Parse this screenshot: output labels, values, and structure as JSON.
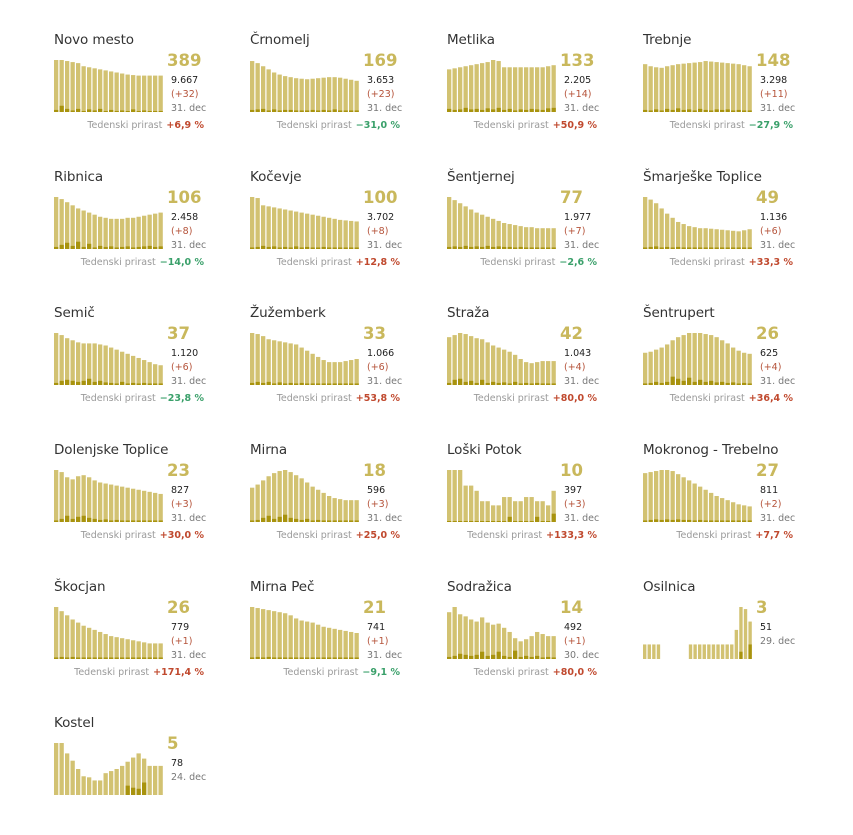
{
  "colors": {
    "bar_total": "#d2c272",
    "bar_new": "#a8930e",
    "accent_number": "#c9b85c",
    "increase": "#c0492e",
    "decrease": "#3aa06a"
  },
  "chart_data": [
    {
      "type": "bar",
      "title": "Novo mesto",
      "value": "389",
      "total": "9.667",
      "delta": "(+32)",
      "date": "31. dec",
      "weekly_label": "Tedenski prirast",
      "weekly_value": "+6,9 %",
      "trend": "up",
      "values": [
        100,
        100,
        98,
        96,
        94,
        88,
        86,
        84,
        82,
        80,
        78,
        76,
        74,
        72,
        71,
        70,
        70,
        70,
        70,
        70
      ],
      "new": [
        4,
        12,
        6,
        3,
        6,
        2,
        5,
        3,
        6,
        2,
        4,
        2,
        3,
        2,
        5,
        2,
        3,
        2,
        2,
        2
      ]
    },
    {
      "type": "bar",
      "title": "Črnomelj",
      "value": "169",
      "total": "3.653",
      "delta": "(+23)",
      "date": "31. dec",
      "weekly_label": "Tedenski prirast",
      "weekly_value": "−31,0 %",
      "trend": "down",
      "values": [
        98,
        94,
        88,
        82,
        76,
        72,
        69,
        67,
        65,
        64,
        63,
        64,
        65,
        66,
        67,
        67,
        66,
        64,
        62,
        60
      ],
      "new": [
        4,
        5,
        6,
        3,
        5,
        3,
        4,
        4,
        3,
        3,
        3,
        4,
        3,
        4,
        3,
        5,
        3,
        3,
        3,
        3
      ]
    },
    {
      "type": "bar",
      "title": "Metlika",
      "value": "133",
      "total": "2.205",
      "delta": "(+14)",
      "date": "31. dec",
      "weekly_label": "Tedenski prirast",
      "weekly_value": "+50,9 %",
      "trend": "up",
      "values": [
        82,
        84,
        86,
        88,
        90,
        92,
        94,
        96,
        100,
        98,
        86,
        86,
        86,
        86,
        86,
        86,
        86,
        86,
        88,
        90
      ],
      "new": [
        6,
        4,
        5,
        8,
        5,
        6,
        4,
        7,
        5,
        8,
        4,
        6,
        3,
        5,
        4,
        6,
        5,
        4,
        7,
        8
      ]
    },
    {
      "type": "bar",
      "title": "Trebnje",
      "value": "148",
      "total": "3.298",
      "delta": "(+11)",
      "date": "31. dec",
      "weekly_label": "Tedenski prirast",
      "weekly_value": "−27,9 %",
      "trend": "down",
      "values": [
        92,
        88,
        86,
        85,
        88,
        90,
        92,
        93,
        94,
        95,
        96,
        98,
        97,
        96,
        95,
        94,
        93,
        92,
        90,
        88
      ],
      "new": [
        4,
        3,
        5,
        3,
        6,
        4,
        7,
        4,
        5,
        3,
        6,
        4,
        3,
        5,
        4,
        5,
        3,
        4,
        3,
        3
      ]
    },
    {
      "type": "bar",
      "title": "Ribnica",
      "value": "106",
      "total": "2.458",
      "delta": "(+8)",
      "date": "31. dec",
      "weekly_label": "Tedenski prirast",
      "weekly_value": "−14,0 %",
      "trend": "down",
      "values": [
        100,
        96,
        90,
        84,
        78,
        74,
        70,
        66,
        62,
        60,
        58,
        58,
        58,
        60,
        60,
        62,
        64,
        66,
        68,
        70
      ],
      "new": [
        4,
        8,
        12,
        6,
        14,
        4,
        10,
        3,
        6,
        4,
        5,
        3,
        4,
        5,
        3,
        4,
        5,
        6,
        4,
        5
      ]
    },
    {
      "type": "bar",
      "title": "Kočevje",
      "value": "100",
      "total": "3.702",
      "delta": "(+8)",
      "date": "31. dec",
      "weekly_label": "Tedenski prirast",
      "weekly_value": "+12,8 %",
      "trend": "up",
      "values": [
        100,
        98,
        84,
        82,
        80,
        78,
        76,
        74,
        72,
        70,
        68,
        66,
        64,
        62,
        60,
        58,
        56,
        55,
        54,
        53
      ],
      "new": [
        3,
        4,
        6,
        4,
        5,
        3,
        4,
        3,
        5,
        3,
        4,
        3,
        3,
        4,
        3,
        3,
        3,
        3,
        3,
        3
      ]
    },
    {
      "type": "bar",
      "title": "Šentjernej",
      "value": "77",
      "total": "1.977",
      "delta": "(+7)",
      "date": "31. dec",
      "weekly_label": "Tedenski prirast",
      "weekly_value": "−2,6 %",
      "trend": "down",
      "values": [
        100,
        94,
        88,
        82,
        76,
        70,
        66,
        62,
        58,
        54,
        50,
        48,
        46,
        44,
        42,
        42,
        40,
        40,
        40,
        40
      ],
      "new": [
        4,
        5,
        4,
        6,
        4,
        5,
        4,
        6,
        4,
        5,
        4,
        4,
        3,
        4,
        3,
        3,
        3,
        3,
        3,
        3
      ]
    },
    {
      "type": "bar",
      "title": "Šmarješke Toplice",
      "value": "49",
      "total": "1.136",
      "delta": "(+6)",
      "date": "31. dec",
      "weekly_label": "Tedenski prirast",
      "weekly_value": "+33,3 %",
      "trend": "up",
      "values": [
        100,
        95,
        88,
        78,
        68,
        60,
        52,
        48,
        44,
        42,
        40,
        40,
        39,
        38,
        37,
        36,
        35,
        34,
        36,
        38
      ],
      "new": [
        3,
        4,
        5,
        3,
        4,
        3,
        4,
        3,
        3,
        3,
        3,
        3,
        3,
        3,
        3,
        3,
        3,
        3,
        3,
        3
      ]
    },
    {
      "type": "bar",
      "title": "Semič",
      "value": "37",
      "total": "1.120",
      "delta": "(+6)",
      "date": "31. dec",
      "weekly_label": "Tedenski prirast",
      "weekly_value": "−23,8 %",
      "trend": "down",
      "values": [
        100,
        96,
        90,
        86,
        82,
        80,
        80,
        80,
        78,
        76,
        72,
        68,
        64,
        60,
        56,
        52,
        48,
        44,
        40,
        38
      ],
      "new": [
        4,
        8,
        10,
        8,
        6,
        8,
        12,
        6,
        8,
        5,
        4,
        3,
        6,
        3,
        4,
        3,
        4,
        3,
        3,
        3
      ]
    },
    {
      "type": "bar",
      "title": "Žužemberk",
      "value": "33",
      "total": "1.066",
      "delta": "(+6)",
      "date": "31. dec",
      "weekly_label": "Tedenski prirast",
      "weekly_value": "+53,8 %",
      "trend": "up",
      "values": [
        100,
        98,
        94,
        88,
        86,
        84,
        82,
        80,
        78,
        72,
        66,
        60,
        54,
        48,
        44,
        44,
        44,
        46,
        48,
        50
      ],
      "new": [
        4,
        6,
        4,
        6,
        3,
        5,
        3,
        4,
        3,
        4,
        3,
        3,
        3,
        3,
        3,
        3,
        3,
        3,
        3,
        3
      ]
    },
    {
      "type": "bar",
      "title": "Straža",
      "value": "42",
      "total": "1.043",
      "delta": "(+4)",
      "date": "31. dec",
      "weekly_label": "Tedenski prirast",
      "weekly_value": "+80,0 %",
      "trend": "up",
      "values": [
        92,
        96,
        100,
        98,
        94,
        90,
        88,
        82,
        76,
        72,
        68,
        64,
        58,
        50,
        44,
        42,
        44,
        46,
        46,
        46
      ],
      "new": [
        4,
        10,
        12,
        6,
        8,
        4,
        10,
        4,
        6,
        4,
        5,
        3,
        6,
        3,
        4,
        3,
        4,
        3,
        3,
        3
      ]
    },
    {
      "type": "bar",
      "title": "Šentrupert",
      "value": "26",
      "total": "625",
      "delta": "(+4)",
      "date": "31. dec",
      "weekly_label": "Tedenski prirast",
      "weekly_value": "+36,4 %",
      "trend": "up",
      "values": [
        62,
        64,
        68,
        72,
        78,
        86,
        92,
        96,
        100,
        100,
        100,
        98,
        96,
        92,
        86,
        80,
        72,
        66,
        62,
        60
      ],
      "new": [
        3,
        4,
        6,
        4,
        6,
        16,
        12,
        8,
        14,
        6,
        10,
        6,
        8,
        5,
        6,
        4,
        5,
        3,
        4,
        3
      ]
    },
    {
      "type": "bar",
      "title": "Dolenjske Toplice",
      "value": "23",
      "total": "827",
      "delta": "(+3)",
      "date": "31. dec",
      "weekly_label": "Tedenski prirast",
      "weekly_value": "+30,0 %",
      "trend": "up",
      "values": [
        100,
        96,
        86,
        82,
        88,
        90,
        86,
        80,
        76,
        74,
        72,
        70,
        68,
        66,
        64,
        62,
        60,
        58,
        56,
        54
      ],
      "new": [
        3,
        6,
        12,
        6,
        10,
        12,
        8,
        6,
        4,
        5,
        3,
        4,
        3,
        3,
        3,
        3,
        3,
        3,
        3,
        3
      ]
    },
    {
      "type": "bar",
      "title": "Mirna",
      "value": "18",
      "total": "596",
      "delta": "(+3)",
      "date": "31. dec",
      "weekly_label": "Tedenski prirast",
      "weekly_value": "+25,0 %",
      "trend": "up",
      "values": [
        66,
        72,
        80,
        88,
        94,
        98,
        100,
        96,
        90,
        84,
        76,
        68,
        62,
        56,
        50,
        46,
        44,
        42,
        42,
        42
      ],
      "new": [
        3,
        4,
        8,
        12,
        6,
        10,
        14,
        8,
        6,
        4,
        6,
        3,
        4,
        3,
        3,
        3,
        3,
        3,
        3,
        3
      ]
    },
    {
      "type": "bar",
      "title": "Loški Potok",
      "value": "10",
      "total": "397",
      "delta": "(+3)",
      "date": "31. dec",
      "weekly_label": "Tedenski prirast",
      "weekly_value": "+133,3 %",
      "trend": "up",
      "values": [
        100,
        100,
        100,
        70,
        70,
        60,
        40,
        40,
        32,
        32,
        48,
        48,
        40,
        40,
        48,
        48,
        40,
        40,
        32,
        60
      ],
      "new": [
        2,
        2,
        2,
        2,
        2,
        2,
        2,
        2,
        2,
        2,
        2,
        10,
        2,
        2,
        2,
        2,
        10,
        2,
        2,
        16
      ]
    },
    {
      "type": "bar",
      "title": "Mokronog - Trebelno",
      "value": "27",
      "total": "811",
      "delta": "(+2)",
      "date": "31. dec",
      "weekly_label": "Tedenski prirast",
      "weekly_value": "+7,7 %",
      "trend": "up",
      "values": [
        94,
        96,
        98,
        100,
        100,
        98,
        92,
        86,
        80,
        74,
        68,
        62,
        56,
        50,
        46,
        42,
        38,
        34,
        32,
        30
      ],
      "new": [
        3,
        4,
        5,
        4,
        5,
        4,
        5,
        4,
        4,
        3,
        4,
        3,
        3,
        3,
        3,
        3,
        3,
        3,
        3,
        3
      ]
    },
    {
      "type": "bar",
      "title": "Škocjan",
      "value": "26",
      "total": "779",
      "delta": "(+1)",
      "date": "31. dec",
      "weekly_label": "Tedenski prirast",
      "weekly_value": "+171,4 %",
      "trend": "up",
      "values": [
        100,
        92,
        84,
        76,
        70,
        64,
        60,
        56,
        52,
        48,
        44,
        42,
        40,
        38,
        36,
        34,
        32,
        30,
        30,
        30
      ],
      "new": [
        3,
        4,
        3,
        4,
        3,
        3,
        3,
        3,
        3,
        3,
        3,
        3,
        3,
        3,
        3,
        3,
        3,
        3,
        3,
        3
      ]
    },
    {
      "type": "bar",
      "title": "Mirna Peč",
      "value": "21",
      "total": "741",
      "delta": "(+1)",
      "date": "31. dec",
      "weekly_label": "Tedenski prirast",
      "weekly_value": "−9,1 %",
      "trend": "down",
      "values": [
        100,
        98,
        96,
        94,
        92,
        90,
        88,
        84,
        78,
        74,
        72,
        70,
        66,
        62,
        60,
        58,
        56,
        54,
        52,
        50
      ],
      "new": [
        3,
        4,
        3,
        4,
        3,
        3,
        3,
        3,
        3,
        3,
        3,
        3,
        3,
        3,
        3,
        3,
        3,
        3,
        3,
        3
      ]
    },
    {
      "type": "bar",
      "title": "Sodražica",
      "value": "14",
      "total": "492",
      "delta": "(+1)",
      "date": "30. dec",
      "weekly_label": "Tedenski prirast",
      "weekly_value": "+80,0 %",
      "trend": "up",
      "values": [
        90,
        100,
        86,
        82,
        76,
        72,
        80,
        70,
        66,
        68,
        60,
        52,
        40,
        34,
        38,
        44,
        52,
        48,
        44,
        44
      ],
      "new": [
        4,
        6,
        10,
        8,
        6,
        8,
        14,
        6,
        8,
        14,
        6,
        4,
        16,
        4,
        6,
        4,
        6,
        3,
        4,
        3
      ]
    },
    {
      "type": "bar",
      "title": "Osilnica",
      "value": "3",
      "total": "51",
      "delta": "",
      "date": "29. dec",
      "weekly_label": "",
      "weekly_value": "",
      "trend": "",
      "values": [
        28,
        28,
        28,
        28,
        0,
        0,
        0,
        0,
        0,
        0,
        28,
        28,
        28,
        28,
        28,
        28,
        28,
        28,
        28,
        28,
        56,
        100,
        96,
        72
      ],
      "new": [
        0,
        0,
        0,
        0,
        0,
        0,
        0,
        0,
        0,
        0,
        0,
        0,
        0,
        0,
        0,
        0,
        0,
        0,
        0,
        0,
        0,
        14,
        0,
        28
      ]
    },
    {
      "type": "bar",
      "title": "Kostel",
      "value": "5",
      "total": "78",
      "delta": "",
      "date": "24. dec",
      "weekly_label": "",
      "weekly_value": "",
      "trend": "",
      "values": [
        100,
        100,
        80,
        66,
        50,
        36,
        34,
        28,
        28,
        42,
        46,
        50,
        56,
        64,
        72,
        80,
        70,
        56,
        56,
        56
      ],
      "new": [
        0,
        0,
        0,
        0,
        0,
        0,
        0,
        0,
        0,
        0,
        0,
        0,
        0,
        18,
        14,
        12,
        24,
        0,
        0,
        0
      ]
    }
  ]
}
